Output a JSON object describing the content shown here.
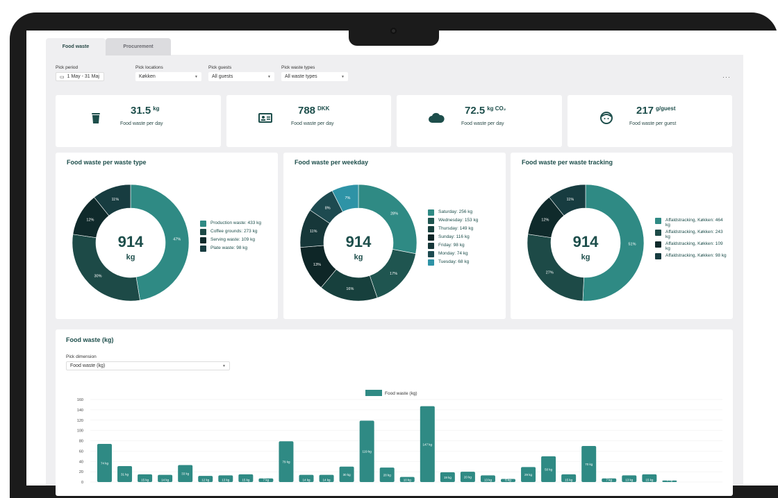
{
  "tabs": [
    {
      "label": "Food waste",
      "active": true
    },
    {
      "label": "Procurement",
      "active": false
    }
  ],
  "filters": {
    "period": {
      "label": "Pick period",
      "value": "1 May - 31 Maj"
    },
    "locations": {
      "label": "Pick locations",
      "value": "Køkken"
    },
    "guests": {
      "label": "Pick guests",
      "value": "All guests"
    },
    "waste_types": {
      "label": "Pick waste types",
      "value": "All waste types"
    },
    "more": "···"
  },
  "kpis": [
    {
      "icon": "trash-icon",
      "value": "31.5",
      "unit": "kg",
      "label": "Food waste per day"
    },
    {
      "icon": "money-icon",
      "value": "788",
      "unit": "DKK",
      "label": "Food waste per day"
    },
    {
      "icon": "cloud-icon",
      "value": "72.5",
      "unit": "kg CO₂",
      "label": "Food waste per day"
    },
    {
      "icon": "face-icon",
      "value": "217",
      "unit": "g/guest",
      "label": "Food waste per guest"
    }
  ],
  "donut_cards": [
    {
      "title": "Food waste per waste type",
      "center_value": "914",
      "center_unit": "kg",
      "slices": [
        {
          "label": "Production waste: 433 kg",
          "value": 433,
          "pct": "47%",
          "color": "#2f8a84"
        },
        {
          "label": "Coffee grounds: 273 kg",
          "value": 273,
          "pct": "30%",
          "color": "#1d4a47"
        },
        {
          "label": "Serving waste: 109 kg",
          "value": 109,
          "pct": "12%",
          "color": "#0f2a2b"
        },
        {
          "label": "Plate waste: 98 kg",
          "value": 98,
          "pct": "11%",
          "color": "#173c40"
        }
      ]
    },
    {
      "title": "Food waste per weekday",
      "center_value": "914",
      "center_unit": "kg",
      "slices": [
        {
          "label": "Saturday: 256 kg",
          "value": 256,
          "pct": "28%",
          "color": "#2f8a84"
        },
        {
          "label": "Wednesday: 153 kg",
          "value": 153,
          "pct": "17%",
          "color": "#1f5550"
        },
        {
          "label": "Thursday: 149 kg",
          "value": 149,
          "pct": "16%",
          "color": "#17403d"
        },
        {
          "label": "Sunday: 116 kg",
          "value": 116,
          "pct": "13%",
          "color": "#0e2627"
        },
        {
          "label": "Friday: 98 kg",
          "value": 98,
          "pct": "11%",
          "color": "#163739"
        },
        {
          "label": "Monday: 74 kg",
          "value": 74,
          "pct": "8%",
          "color": "#1d4a50"
        },
        {
          "label": "Tuesday: 68 kg",
          "value": 68,
          "pct": "7%",
          "color": "#2e93a6"
        }
      ]
    },
    {
      "title": "Food waste per waste tracking",
      "center_value": "914",
      "center_unit": "kg",
      "slices": [
        {
          "label": "Affaldstracking, Køkken: 464 kg",
          "value": 464,
          "pct": "51%",
          "color": "#2f8a84"
        },
        {
          "label": "Affaldstracking, Køkken: 243 kg",
          "value": 243,
          "pct": "27%",
          "color": "#1d4a47"
        },
        {
          "label": "Affaldstracking, Køkken: 109 kg",
          "value": 109,
          "pct": "12%",
          "color": "#0f2a2b"
        },
        {
          "label": "Affaldstracking, Køkken: 98 kg",
          "value": 98,
          "pct": "11%",
          "color": "#173c40"
        }
      ]
    }
  ],
  "bar_card": {
    "title": "Food waste (kg)",
    "dimension_label": "Pick dimension",
    "dimension_value": "Food waste (kg)"
  },
  "chart_data": {
    "type": "bar",
    "series": [
      {
        "name": "Food waste (kg)",
        "color": "#2f8a84"
      }
    ],
    "ylim": [
      0,
      160
    ],
    "yticks": [
      0,
      20,
      40,
      60,
      80,
      100,
      120,
      140,
      160
    ],
    "labels": [
      "74 kg",
      "31 kg",
      "15 kg",
      "14 kg",
      "33 kg",
      "12 kg",
      "13 kg",
      "15 kg",
      "7 kg",
      "79 kg",
      "14 kg",
      "14 kg",
      "30 kg",
      "119 kg",
      "28 kg",
      "10 kg",
      "147 kg",
      "19 kg",
      "20 kg",
      "13 kg",
      "6 kg",
      "29 kg",
      "50 kg",
      "15 kg",
      "70 kg",
      "7 kg",
      "13 kg",
      "15 kg",
      "3 kg"
    ],
    "values": [
      74,
      31,
      15,
      14,
      33,
      12,
      13,
      15,
      7,
      79,
      14,
      14,
      30,
      119,
      28,
      10,
      147,
      19,
      20,
      13,
      6,
      29,
      50,
      15,
      70,
      7,
      13,
      15,
      3
    ]
  }
}
